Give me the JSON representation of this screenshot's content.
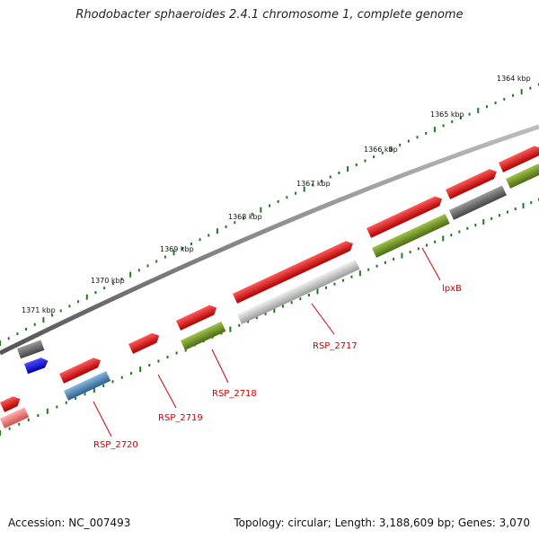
{
  "title": "Rhodobacter sphaeroides 2.4.1 chromosome 1, complete genome",
  "footer": {
    "accession": "Accession: NC_007493",
    "summary": "Topology: circular; Length: 3,188,609 bp; Genes: 3,070"
  },
  "colors": {
    "backbone": "#7b7b7b",
    "tick": "#1f7a1f",
    "label": "#d40000",
    "gene_red": "#ee0000",
    "gene_pink": "#f07070",
    "gene_gray": "#6b6b6b",
    "gene_lightgray": "#bdbdbd",
    "gene_olive": "#6b8e23",
    "gene_steelblue": "#4a86b8",
    "gene_blue": "#0000ee"
  },
  "scale_labels": [
    "1364 kbp",
    "1365 kbp",
    "1366 kbp",
    "1367 kbp",
    "1368 kbp",
    "1369 kbp",
    "1370 kbp",
    "1371 kbp"
  ],
  "gene_labels": [
    "lpxB",
    "RSP_2717",
    "RSP_2718",
    "RSP_2719",
    "RSP_2720"
  ],
  "features": [
    {
      "name": "feature-1",
      "color": "gene_red",
      "lane": "outer"
    },
    {
      "name": "feature-2",
      "color": "gene_red",
      "lane": "outer"
    },
    {
      "name": "feature-3",
      "color": "gene_red",
      "lane": "outer"
    },
    {
      "name": "feature-4",
      "color": "gene_red",
      "lane": "outer"
    },
    {
      "name": "feature-5",
      "color": "gene_red",
      "lane": "outer"
    },
    {
      "name": "feature-6",
      "color": "gene_red",
      "lane": "outer"
    },
    {
      "name": "feature-7",
      "color": "gene_red",
      "lane": "outer"
    },
    {
      "name": "feature-8",
      "color": "gene_red",
      "lane": "outer"
    },
    {
      "name": "feature-9",
      "color": "gene_olive",
      "lane": "inner"
    },
    {
      "name": "feature-10",
      "color": "gene_gray",
      "lane": "inner"
    },
    {
      "name": "feature-11",
      "color": "gene_olive",
      "lane": "inner"
    },
    {
      "name": "feature-12",
      "color": "gene_lightgray",
      "lane": "inner"
    },
    {
      "name": "feature-13",
      "color": "gene_olive",
      "lane": "inner"
    },
    {
      "name": "feature-14",
      "color": "gene_steelblue",
      "lane": "inner"
    },
    {
      "name": "feature-15",
      "color": "gene_pink",
      "lane": "inner"
    },
    {
      "name": "feature-16",
      "color": "gene_gray",
      "lane": "far-outer"
    },
    {
      "name": "feature-17",
      "color": "gene_blue",
      "lane": "far-outer"
    }
  ]
}
